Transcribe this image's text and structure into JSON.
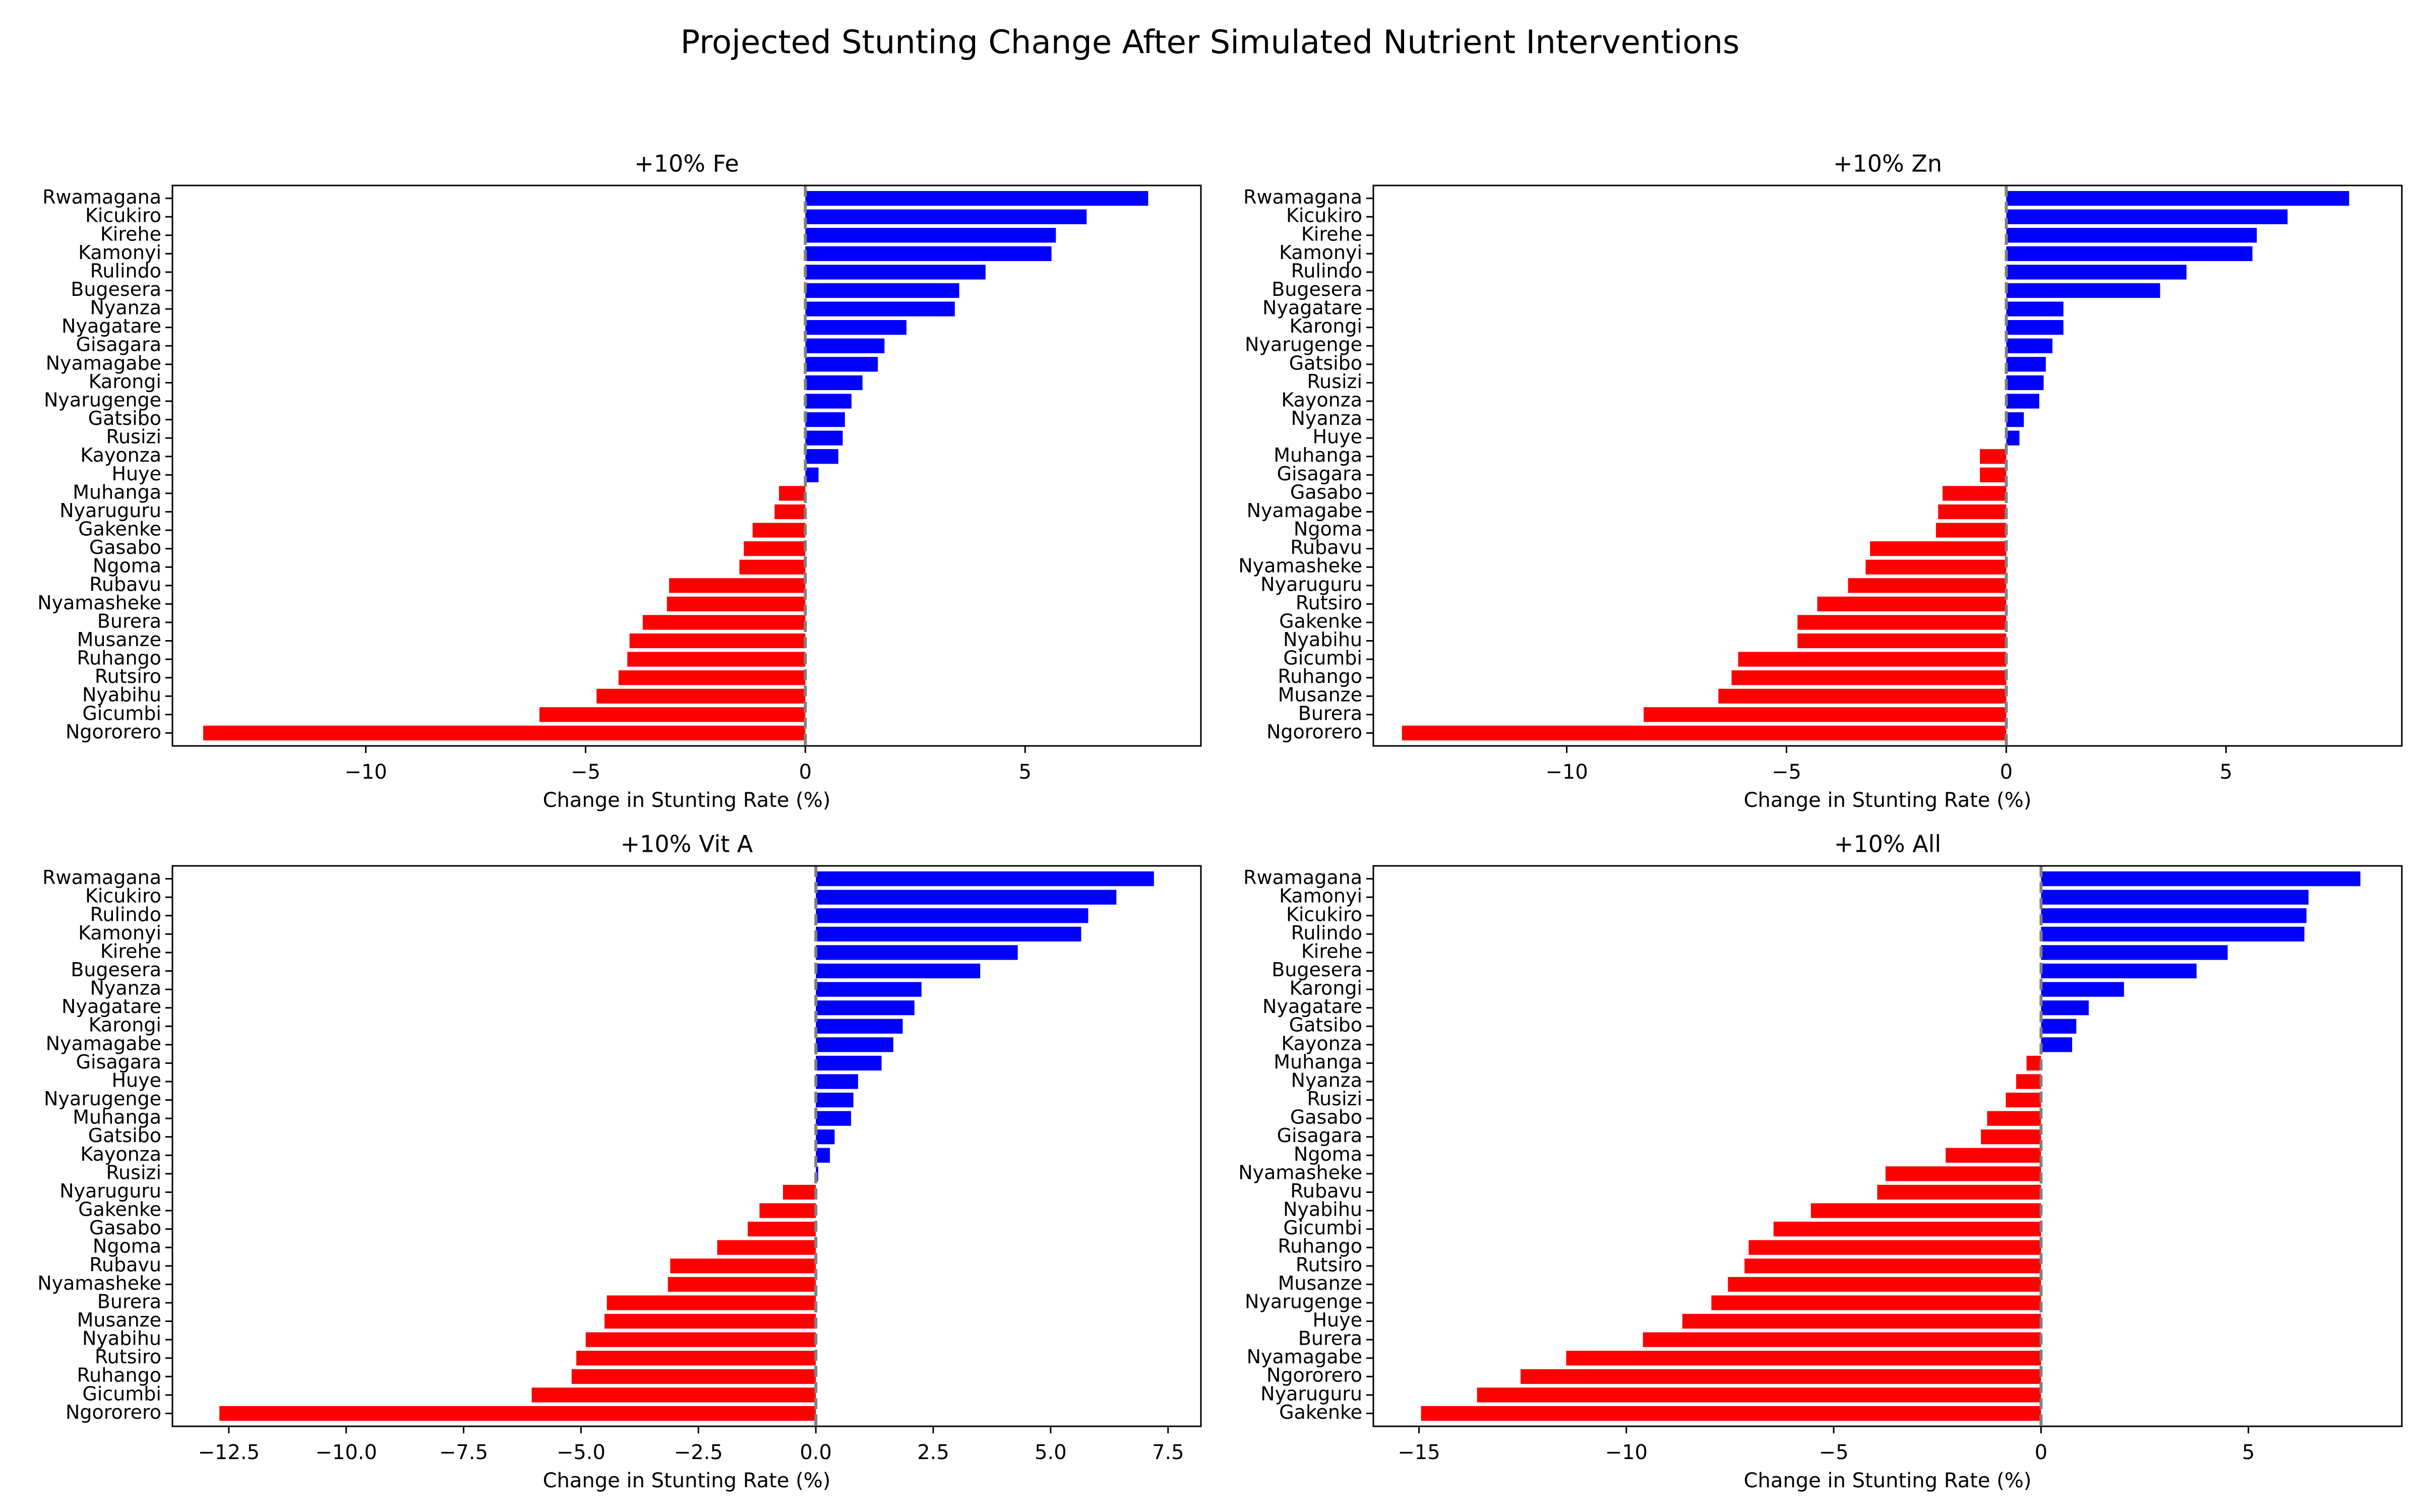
{
  "figure": {
    "title": "Projected Stunting Change After Simulated Nutrient Interventions"
  },
  "colors": {
    "positive": "#0000ff",
    "negative": "#ff0000",
    "zero_line": "#808080"
  },
  "chart_data": [
    {
      "type": "bar",
      "orientation": "horizontal",
      "title": "+10% Fe",
      "xlabel": "Change in Stunting Rate (%)",
      "xlim": [
        -14.4,
        9.0
      ],
      "xticks": [
        -10,
        -5,
        0,
        5
      ],
      "categories": [
        "Rwamagana",
        "Kicukiro",
        "Kirehe",
        "Kamonyi",
        "Rulindo",
        "Bugesera",
        "Nyanza",
        "Nyagatare",
        "Gisagara",
        "Nyamagabe",
        "Karongi",
        "Nyarugenge",
        "Gatsibo",
        "Rusizi",
        "Kayonza",
        "Huye",
        "Muhanga",
        "Nyaruguru",
        "Gakenke",
        "Gasabo",
        "Ngoma",
        "Rubavu",
        "Nyamasheke",
        "Burera",
        "Musanze",
        "Ruhango",
        "Rutsiro",
        "Nyabihu",
        "Gicumbi",
        "Ngororero"
      ],
      "values": [
        7.8,
        6.4,
        5.7,
        5.6,
        4.1,
        3.5,
        3.4,
        2.3,
        1.8,
        1.65,
        1.3,
        1.05,
        0.9,
        0.85,
        0.75,
        0.3,
        -0.6,
        -0.7,
        -1.2,
        -1.4,
        -1.5,
        -3.1,
        -3.15,
        -3.7,
        -4.0,
        -4.05,
        -4.25,
        -4.75,
        -6.05,
        -13.7
      ]
    },
    {
      "type": "bar",
      "orientation": "horizontal",
      "title": "+10% Zn",
      "xlabel": "Change in Stunting Rate (%)",
      "xlim": [
        -14.4,
        9.0
      ],
      "xticks": [
        -10,
        -5,
        0,
        5
      ],
      "categories": [
        "Rwamagana",
        "Kicukiro",
        "Kirehe",
        "Kamonyi",
        "Rulindo",
        "Bugesera",
        "Nyagatare",
        "Karongi",
        "Nyarugenge",
        "Gatsibo",
        "Rusizi",
        "Kayonza",
        "Nyanza",
        "Huye",
        "Muhanga",
        "Gisagara",
        "Gasabo",
        "Nyamagabe",
        "Ngoma",
        "Rubavu",
        "Nyamasheke",
        "Nyaruguru",
        "Rutsiro",
        "Gakenke",
        "Nyabihu",
        "Gicumbi",
        "Ruhango",
        "Musanze",
        "Burera",
        "Ngororero"
      ],
      "values": [
        7.8,
        6.4,
        5.7,
        5.6,
        4.1,
        3.5,
        1.3,
        1.3,
        1.05,
        0.9,
        0.85,
        0.75,
        0.4,
        0.3,
        -0.6,
        -0.6,
        -1.45,
        -1.55,
        -1.6,
        -3.1,
        -3.2,
        -3.6,
        -4.3,
        -4.75,
        -4.75,
        -6.1,
        -6.25,
        -6.55,
        -8.25,
        -13.75
      ]
    },
    {
      "type": "bar",
      "orientation": "horizontal",
      "title": "+10% Vit A",
      "xlabel": "Change in Stunting Rate (%)",
      "xlim": [
        -13.7,
        8.2
      ],
      "xticks": [
        -12.5,
        -10.0,
        -7.5,
        -5.0,
        -2.5,
        0.0,
        2.5,
        5.0,
        7.5
      ],
      "xtick_labels": [
        "−12.5",
        "−10.0",
        "−7.5",
        "−5.0",
        "−2.5",
        "0.0",
        "2.5",
        "5.0",
        "7.5"
      ],
      "categories": [
        "Rwamagana",
        "Kicukiro",
        "Rulindo",
        "Kamonyi",
        "Kirehe",
        "Bugesera",
        "Nyanza",
        "Nyagatare",
        "Karongi",
        "Nyamagabe",
        "Gisagara",
        "Huye",
        "Nyarugenge",
        "Muhanga",
        "Gatsibo",
        "Kayonza",
        "Rusizi",
        "Nyaruguru",
        "Gakenke",
        "Gasabo",
        "Ngoma",
        "Rubavu",
        "Nyamasheke",
        "Burera",
        "Musanze",
        "Nyabihu",
        "Rutsiro",
        "Ruhango",
        "Gicumbi",
        "Ngororero"
      ],
      "values": [
        7.2,
        6.4,
        5.8,
        5.65,
        4.3,
        3.5,
        2.25,
        2.1,
        1.85,
        1.65,
        1.4,
        0.9,
        0.8,
        0.75,
        0.4,
        0.3,
        0.05,
        -0.7,
        -1.2,
        -1.45,
        -2.1,
        -3.1,
        -3.15,
        -4.45,
        -4.5,
        -4.9,
        -5.1,
        -5.2,
        -6.05,
        -12.7
      ]
    },
    {
      "type": "bar",
      "orientation": "horizontal",
      "title": "+10% All",
      "xlabel": "Change in Stunting Rate (%)",
      "xlim": [
        -16.1,
        8.7
      ],
      "xticks": [
        -15,
        -10,
        -5,
        0,
        5
      ],
      "categories": [
        "Rwamagana",
        "Kamonyi",
        "Kicukiro",
        "Rulindo",
        "Kirehe",
        "Bugesera",
        "Karongi",
        "Nyagatare",
        "Gatsibo",
        "Kayonza",
        "Muhanga",
        "Nyanza",
        "Rusizi",
        "Gasabo",
        "Gisagara",
        "Ngoma",
        "Nyamasheke",
        "Rubavu",
        "Nyabihu",
        "Gicumbi",
        "Ruhango",
        "Rutsiro",
        "Musanze",
        "Nyarugenge",
        "Huye",
        "Burera",
        "Nyamagabe",
        "Ngororero",
        "Nyaruguru",
        "Gakenke"
      ],
      "values": [
        7.7,
        6.45,
        6.4,
        6.35,
        4.5,
        3.75,
        2.0,
        1.15,
        0.85,
        0.75,
        -0.35,
        -0.6,
        -0.85,
        -1.3,
        -1.45,
        -2.3,
        -3.75,
        -3.95,
        -5.55,
        -6.45,
        -7.05,
        -7.15,
        -7.55,
        -7.95,
        -8.65,
        -9.6,
        -11.45,
        -12.55,
        -13.6,
        -14.95
      ]
    }
  ]
}
